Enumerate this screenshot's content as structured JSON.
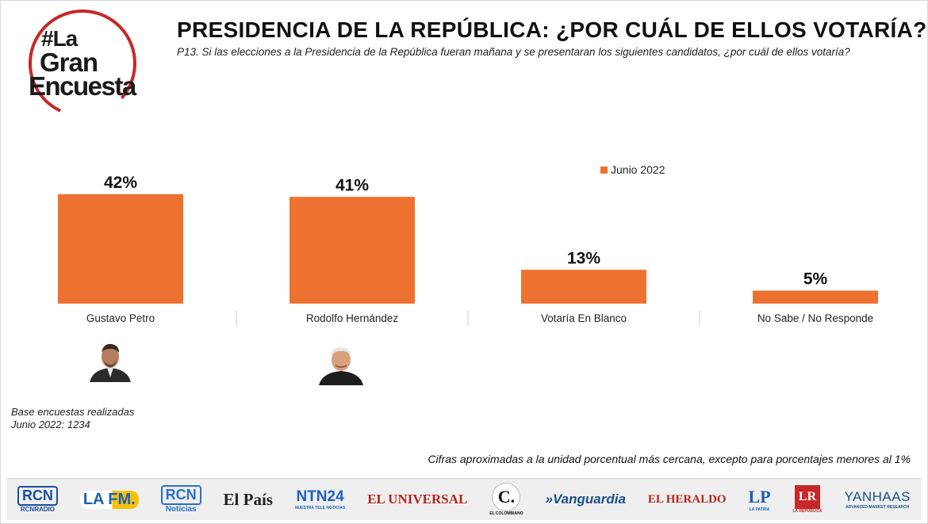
{
  "logo": {
    "line1": "#La",
    "line2": "Gran",
    "line3": "Encuesta",
    "ring_color": "#c62828"
  },
  "header": {
    "title": "PRESIDENCIA DE LA REPÚBLICA: ¿POR CUÁL DE ELLOS VOTARÍA?",
    "question": "P13. Si las elecciones a la Presidencia de la República fueran mañana y se presentaran los siguientes candidatos, ¿por cuál de ellos votaría?"
  },
  "chart_data": {
    "type": "bar",
    "categories": [
      "Gustavo Petro",
      "Rodolfo Hernández",
      "Votaría En Blanco",
      "No Sabe / No Responde"
    ],
    "series": [
      {
        "name": "Junio 2022",
        "values": [
          42,
          41,
          13,
          5
        ],
        "color": "#ed7230"
      }
    ],
    "data_labels": [
      "42%",
      "41%",
      "13%",
      "5%"
    ],
    "legend_position": "top-right",
    "grid": false
  },
  "notes": {
    "base_line1": "Base encuestas realizadas",
    "base_line2": "Junio 2022: 1234",
    "footnote": "Cifras aproximadas a la unidad porcentual más cercana, excepto para porcentajes menores al 1%"
  },
  "media_logos": [
    {
      "text": "RCN",
      "sub": "RCNRADIO",
      "color": "#1a4f9c"
    },
    {
      "text": "LA FM.",
      "sub": "",
      "color": "#1a5fb4"
    },
    {
      "text": "RCN",
      "sub": "Noticias",
      "color": "#2a6fc9"
    },
    {
      "text": "El País",
      "sub": "",
      "color": "#222222"
    },
    {
      "text": "NTN24",
      "sub": "NUESTRA TELE NOTICIAS",
      "color": "#1f5fbf"
    },
    {
      "text": "EL UNIVERSAL",
      "sub": "",
      "color": "#b3261e"
    },
    {
      "text": "C.",
      "sub": "EL COLOMBIANO",
      "color": "#111111"
    },
    {
      "text": "»Vanguardia",
      "sub": "",
      "color": "#1b4e8a"
    },
    {
      "text": "EL HERALDO",
      "sub": "",
      "color": "#b3261e"
    },
    {
      "text": "LP",
      "sub": "LA PATRIA",
      "color": "#1a5fb4"
    },
    {
      "text": "LR",
      "sub": "LA REPÚBLICA",
      "color": "#c62828"
    },
    {
      "text": "YANHAAS",
      "sub": "ADVANCED MARKET RESEARCH",
      "color": "#1b4e8a"
    }
  ]
}
